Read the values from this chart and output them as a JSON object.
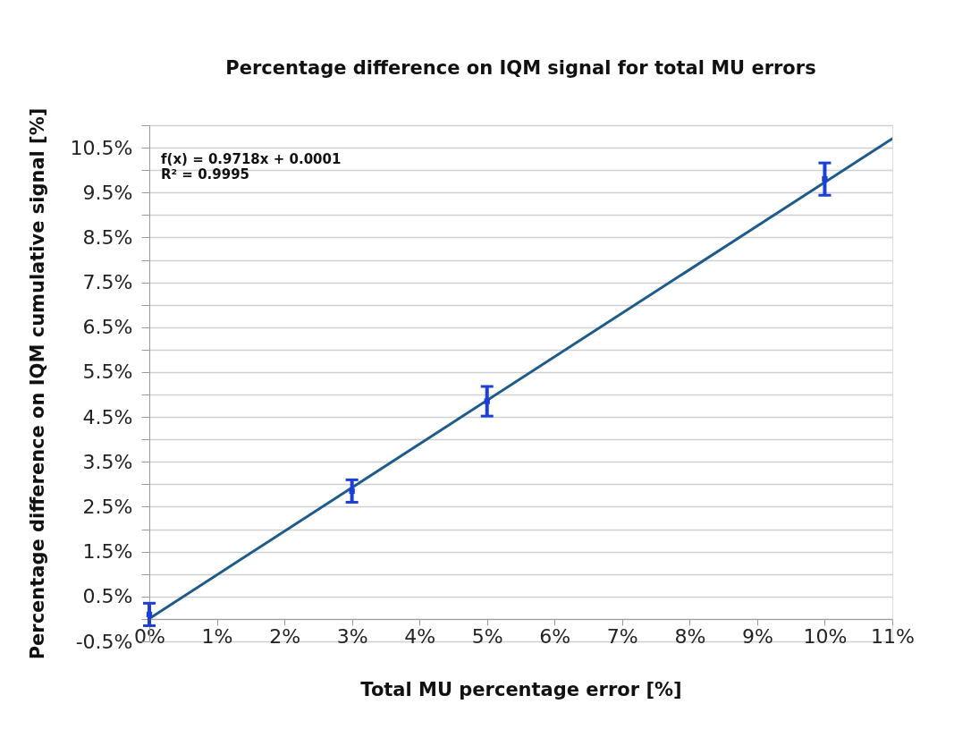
{
  "chart_data": {
    "type": "scatter",
    "title": "Percentage difference on IQM signal for total MU errors",
    "xlabel": "Total MU percentage error [%]",
    "ylabel": "Percentage difference on IQM cumulative signal [%]",
    "series": [
      {
        "type": "line",
        "color": "#1d5b8a",
        "x": [
          0,
          11
        ],
        "values": [
          0.01,
          10.7
        ]
      },
      {
        "color": "#1c3fd8",
        "marker": "square",
        "x": [
          0,
          3,
          5,
          10
        ],
        "values": [
          0.1,
          2.85,
          4.85,
          9.8
        ],
        "errors": [
          0.25,
          0.25,
          0.33,
          0.36
        ]
      }
    ],
    "xlim": [
      0,
      11
    ],
    "ylim": [
      -0.5,
      11
    ],
    "xticks": [
      {
        "value": 0,
        "label": "0%"
      },
      {
        "value": 1,
        "label": "1%"
      },
      {
        "value": 2,
        "label": "2%"
      },
      {
        "value": 3,
        "label": "3%"
      },
      {
        "value": 4,
        "label": "4%"
      },
      {
        "value": 5,
        "label": "5%"
      },
      {
        "value": 6,
        "label": "6%"
      },
      {
        "value": 7,
        "label": "7%"
      },
      {
        "value": 8,
        "label": "8%"
      },
      {
        "value": 9,
        "label": "9%"
      },
      {
        "value": 10,
        "label": "10%"
      },
      {
        "value": 11,
        "label": "11%"
      }
    ],
    "yticks": [
      {
        "value": -0.5,
        "label": "-0.5%"
      },
      {
        "value": 0,
        "label": null
      },
      {
        "value": 0.5,
        "label": "0.5%"
      },
      {
        "value": 1,
        "label": null
      },
      {
        "value": 1.5,
        "label": "1.5%"
      },
      {
        "value": 2,
        "label": null
      },
      {
        "value": 2.5,
        "label": "2.5%"
      },
      {
        "value": 3,
        "label": null
      },
      {
        "value": 3.5,
        "label": "3.5%"
      },
      {
        "value": 4,
        "label": null
      },
      {
        "value": 4.5,
        "label": "4.5%"
      },
      {
        "value": 5,
        "label": null
      },
      {
        "value": 5.5,
        "label": "5.5%"
      },
      {
        "value": 6,
        "label": null
      },
      {
        "value": 6.5,
        "label": "6.5%"
      },
      {
        "value": 7,
        "label": null
      },
      {
        "value": 7.5,
        "label": "7.5%"
      },
      {
        "value": 8,
        "label": null
      },
      {
        "value": 8.5,
        "label": "8.5%"
      },
      {
        "value": 9,
        "label": null
      },
      {
        "value": 9.5,
        "label": "9.5%"
      },
      {
        "value": 10,
        "label": null
      },
      {
        "value": 10.5,
        "label": "10.5%"
      },
      {
        "value": 11,
        "label": null
      }
    ],
    "grid": "y",
    "annotations": [
      "f(x) = 0.9718x + 0.0001",
      "R² = 0.9995"
    ]
  }
}
